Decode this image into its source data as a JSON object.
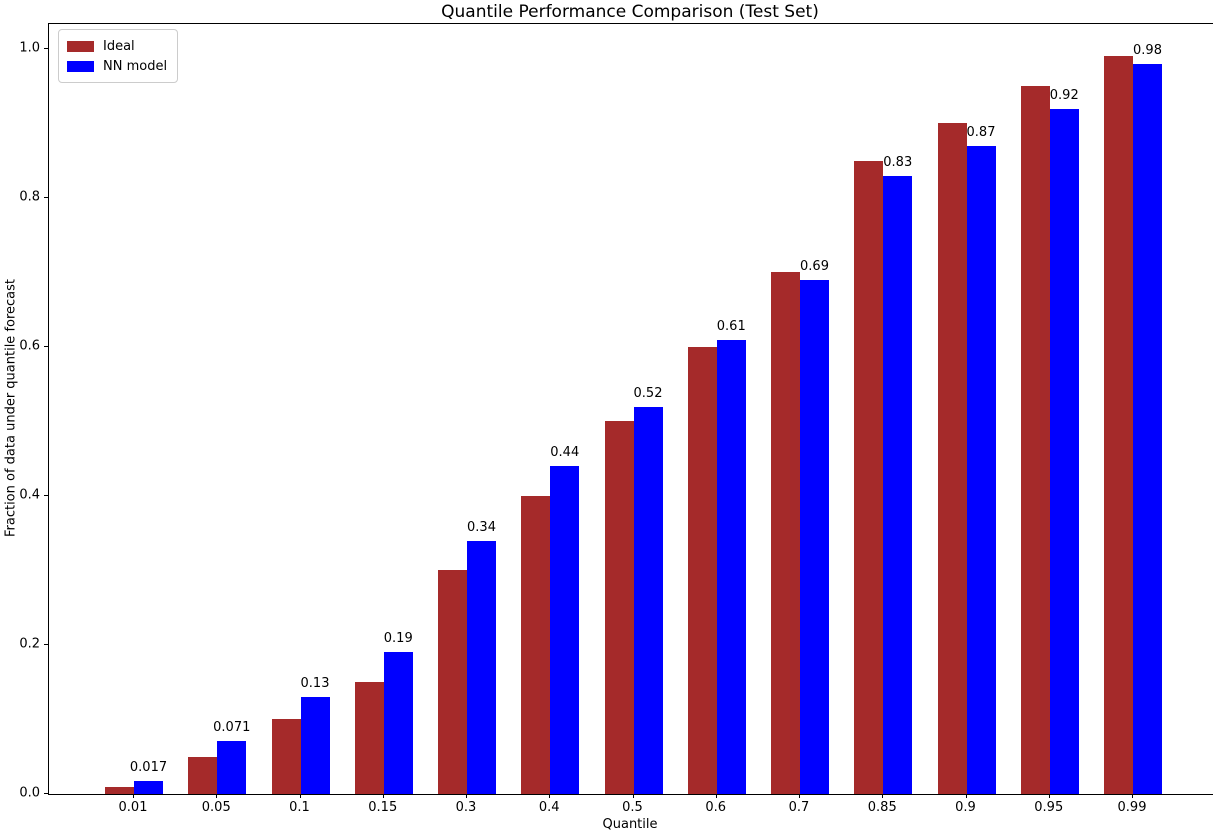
{
  "chart_data": {
    "type": "bar",
    "title": "Quantile Performance Comparison (Test Set)",
    "xlabel": "Quantile",
    "ylabel": "Fraction of data under quantile forecast",
    "categories": [
      "0.01",
      "0.05",
      "0.1",
      "0.15",
      "0.3",
      "0.4",
      "0.5",
      "0.6",
      "0.7",
      "0.85",
      "0.9",
      "0.95",
      "0.99"
    ],
    "series": [
      {
        "name": "Ideal",
        "color": "#A52A2A",
        "values": [
          0.01,
          0.05,
          0.1,
          0.15,
          0.3,
          0.4,
          0.5,
          0.6,
          0.7,
          0.85,
          0.9,
          0.95,
          0.99
        ]
      },
      {
        "name": "NN model",
        "color": "#0000FF",
        "values": [
          0.017,
          0.071,
          0.13,
          0.19,
          0.34,
          0.44,
          0.52,
          0.61,
          0.69,
          0.83,
          0.87,
          0.92,
          0.98
        ]
      }
    ],
    "bar_labels": [
      "0.017",
      "0.071",
      "0.13",
      "0.19",
      "0.34",
      "0.44",
      "0.52",
      "0.61",
      "0.69",
      "0.83",
      "0.87",
      "0.92",
      "0.98"
    ],
    "yticks": [
      "0.0",
      "0.2",
      "0.4",
      "0.6",
      "0.8",
      "1.0"
    ],
    "ylim": [
      0,
      1.034
    ],
    "grid": false,
    "legend_position": "upper left"
  }
}
